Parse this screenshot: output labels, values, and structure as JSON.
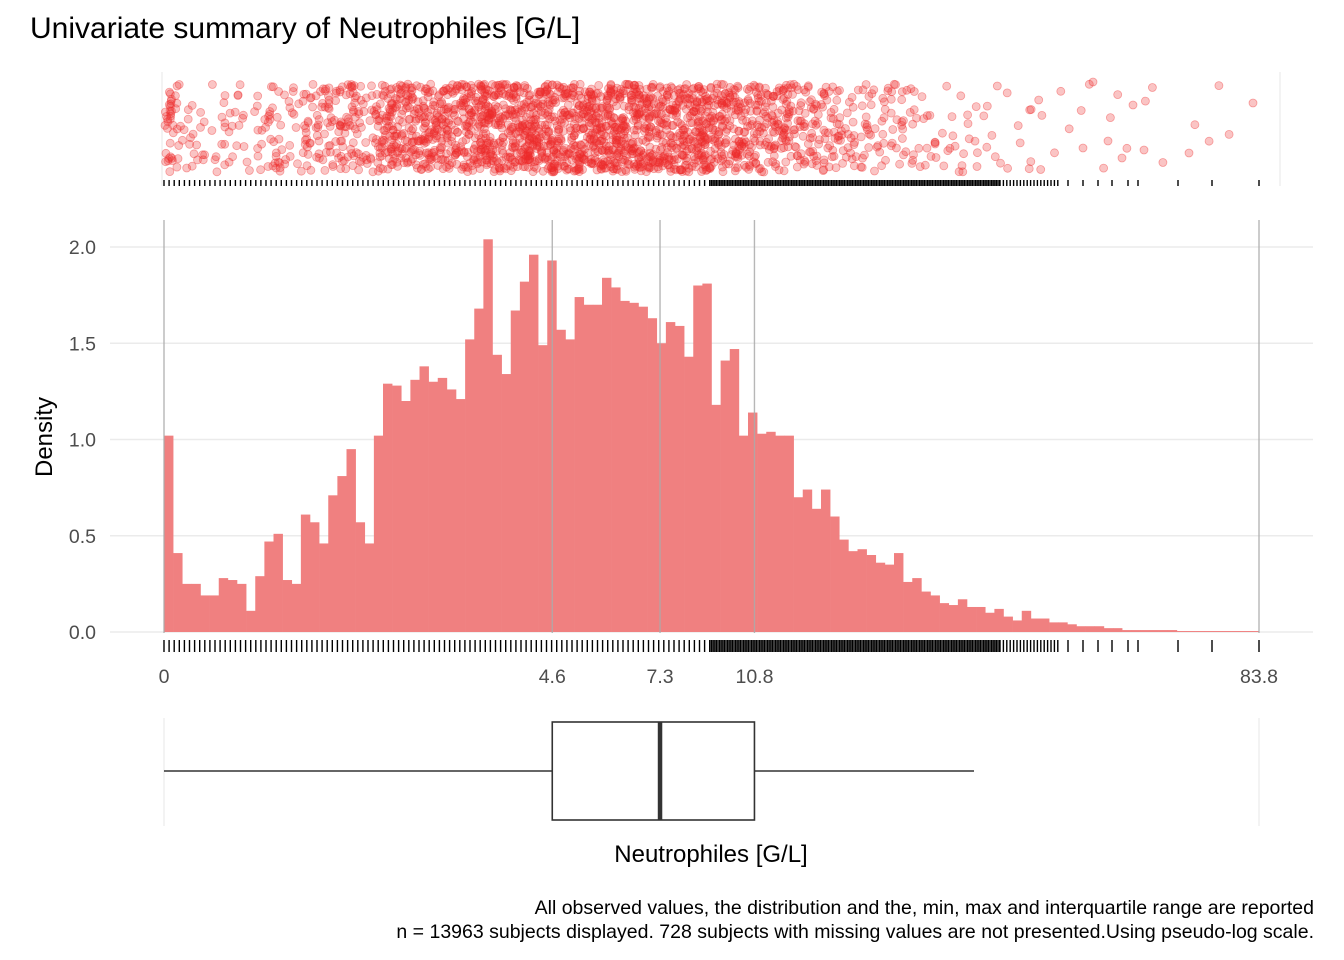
{
  "title": "Univariate summary of Neutrophiles [G/L]",
  "caption": {
    "line1": "All observed values, the distribution and the, min, max and interquartile range are reported",
    "line2": "n = 13963 subjects displayed. 728 subjects with missing values are not presented.Using pseudo-log scale."
  },
  "colors": {
    "fill": "#F08080",
    "points": "#EE2A2A",
    "grid": "#EBEBEB",
    "refline": "#AAAAAA"
  },
  "chart_data": {
    "type": "bar",
    "xlabel": "Neutrophiles [G/L]",
    "ylabel": "Density",
    "x_scale": "pseudo-log",
    "ylim": [
      0,
      2.1
    ],
    "y_ticks": [
      "0.0",
      "0.5",
      "1.0",
      "1.5",
      "2.0"
    ],
    "x_ticks": [
      "0",
      "4.6",
      "7.3",
      "10.8",
      "83.8"
    ],
    "summary": {
      "min": 0,
      "q1": 4.6,
      "median": 7.3,
      "q3": 10.8,
      "max": 83.8,
      "n_displayed": 13963,
      "n_missing": 728
    },
    "grid": true,
    "legend": "none",
    "histogram_densities": [
      1.02,
      0.41,
      0.25,
      0.25,
      0.19,
      0.19,
      0.28,
      0.27,
      0.25,
      0.11,
      0.29,
      0.47,
      0.51,
      0.27,
      0.25,
      0.61,
      0.57,
      0.46,
      0.71,
      0.81,
      0.95,
      0.57,
      0.46,
      1.02,
      1.29,
      1.28,
      1.2,
      1.31,
      1.38,
      1.3,
      1.32,
      1.26,
      1.21,
      1.52,
      1.68,
      2.04,
      1.44,
      1.34,
      1.67,
      1.82,
      1.96,
      1.49,
      1.93,
      1.57,
      1.52,
      1.74,
      1.7,
      1.7,
      1.84,
      1.79,
      1.72,
      1.71,
      1.69,
      1.63,
      1.5,
      1.61,
      1.59,
      1.43,
      1.8,
      1.81,
      1.18,
      1.41,
      1.47,
      1.02,
      1.14,
      1.03,
      1.04,
      1.02,
      1.02,
      0.7,
      0.74,
      0.64,
      0.74,
      0.6,
      0.48,
      0.42,
      0.43,
      0.4,
      0.36,
      0.35,
      0.41,
      0.26,
      0.28,
      0.21,
      0.19,
      0.15,
      0.14,
      0.17,
      0.13,
      0.13,
      0.1,
      0.12,
      0.08,
      0.06,
      0.11,
      0.07,
      0.07,
      0.05,
      0.05,
      0.04,
      0.03,
      0.03,
      0.03,
      0.02,
      0.02,
      0.01,
      0.01,
      0.01,
      0.01,
      0.01,
      0.01,
      0.005,
      0.005,
      0.005,
      0.005,
      0.005,
      0.005,
      0.005,
      0.005,
      0.005
    ]
  }
}
